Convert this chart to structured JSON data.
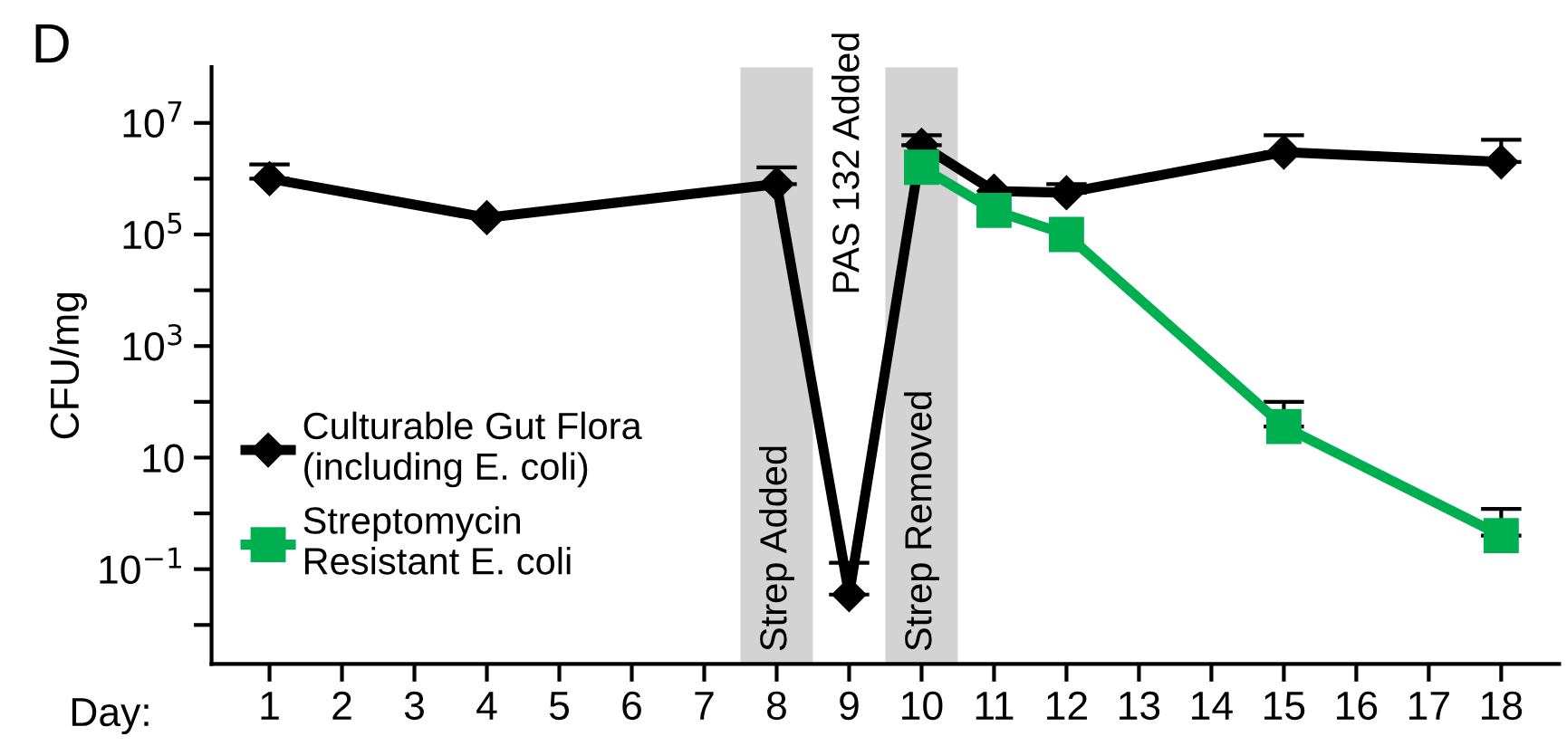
{
  "chart_data": {
    "type": "line",
    "xlabel": "Day:",
    "ylabel": "CFU/mg",
    "annotations": [
      "D",
      "PAS 132 Added"
    ],
    "series": [
      {
        "name": "Culturable Gut Flora\n(including E. coli)",
        "color": "#000000",
        "marker": "diamond",
        "x": [
          1,
          4,
          8,
          9,
          10,
          11,
          12,
          15,
          18
        ],
        "values": [
          1000000,
          200000,
          800000,
          0.035,
          4000000,
          600000,
          560000,
          3000000,
          2000000
        ],
        "errors": [
          [
            1000000,
            1800000
          ],
          null,
          [
            800000,
            1600000
          ],
          [
            0.035,
            0.13
          ],
          [
            4000000,
            6000000
          ],
          null,
          [
            560000,
            800000
          ],
          [
            3000000,
            6000000
          ],
          [
            2000000,
            5000000
          ]
        ]
      },
      {
        "name": "Streptomycin\nResistant E. coli",
        "color": "#00b050",
        "marker": "square",
        "x": [
          10,
          11,
          12,
          15,
          18
        ],
        "values": [
          1600000,
          270000,
          100000,
          36,
          0.4
        ],
        "errors": [
          null,
          null,
          null,
          [
            36,
            100
          ],
          [
            0.4,
            1.2
          ]
        ]
      }
    ],
    "log": "y",
    "xlim": [
      0.2,
      18.8
    ],
    "xticks": [
      1,
      2,
      3,
      4,
      5,
      6,
      7,
      8,
      9,
      10,
      11,
      12,
      13,
      14,
      15,
      16,
      17,
      18
    ],
    "ylim": [
      0.002,
      100000000
    ],
    "yticks": [
      {
        "value": 10000000,
        "label": "10$^{7}$"
      },
      {
        "value": 1000000,
        "label": null
      },
      {
        "value": 100000,
        "label": "10$^{5}$"
      },
      {
        "value": 10000,
        "label": null
      },
      {
        "value": 1000,
        "label": "10$^{3}$"
      },
      {
        "value": 100,
        "label": null
      },
      10,
      {
        "value": 1,
        "label": null
      },
      {
        "value": 0.1,
        "label": "10$^{−1}$"
      },
      {
        "value": 0.01,
        "label": null
      }
    ],
    "bands": [
      {
        "axis": "x",
        "from": 7.5,
        "to": 8.5,
        "label": "Strep Added",
        "color": "#d3d3d3"
      },
      {
        "axis": "x",
        "from": 9.5,
        "to": 10.5,
        "label": "Strep Removed",
        "color": "#d3d3d3"
      }
    ],
    "grid": false,
    "legend": "left",
    "line_style": "solid"
  }
}
